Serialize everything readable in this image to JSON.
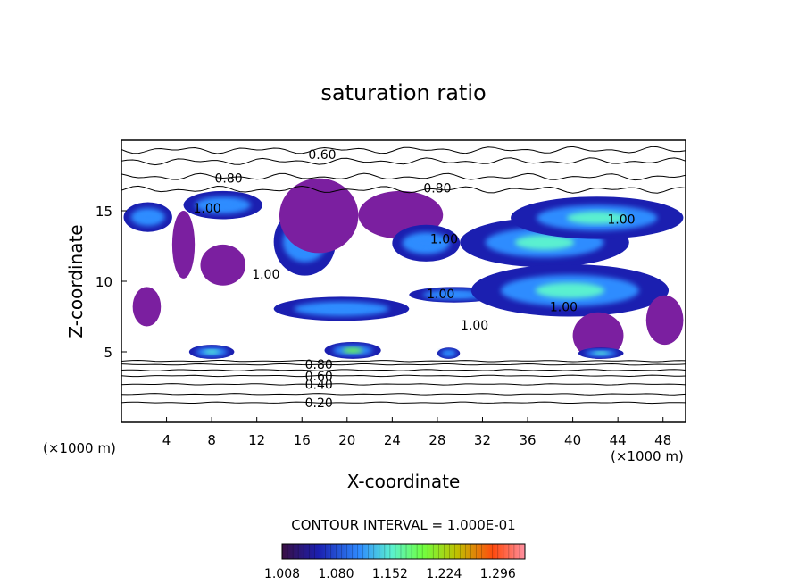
{
  "chart_data": {
    "type": "heatmap",
    "title": "saturation ratio",
    "xlabel": "X-coordinate",
    "ylabel": "Z-coordinate",
    "x_unit_left": "(×1000 m)",
    "x_unit_right": "(×1000 m)",
    "xlim": [
      0,
      50
    ],
    "ylim": [
      0,
      20
    ],
    "x_ticks": [
      4,
      8,
      12,
      16,
      20,
      24,
      28,
      32,
      36,
      40,
      44,
      48
    ],
    "y_ticks": [
      5,
      10,
      15
    ],
    "grid": false,
    "contour_interval_text": "CONTOUR INTERVAL = 1.000E-01",
    "contour_labels": [
      {
        "text": "0.20",
        "x": 17.5,
        "z": 1.4
      },
      {
        "text": "0.40",
        "x": 17.5,
        "z": 2.7
      },
      {
        "text": "0.60",
        "x": 17.5,
        "z": 3.3
      },
      {
        "text": "0.80",
        "x": 17.5,
        "z": 4.1
      },
      {
        "text": "0.60",
        "x": 17.8,
        "z": 19.0
      },
      {
        "text": "0.80",
        "x": 9.5,
        "z": 17.3
      },
      {
        "text": "0.80",
        "x": 28.0,
        "z": 16.6
      },
      {
        "text": "1.00",
        "x": 7.6,
        "z": 15.2
      },
      {
        "text": "1.00",
        "x": 12.8,
        "z": 10.5
      },
      {
        "text": "1.00",
        "x": 28.6,
        "z": 13.0
      },
      {
        "text": "1.00",
        "x": 28.3,
        "z": 9.1
      },
      {
        "text": "1.00",
        "x": 31.3,
        "z": 6.9
      },
      {
        "text": "1.00",
        "x": 39.2,
        "z": 8.2
      },
      {
        "text": "1.00",
        "x": 44.3,
        "z": 14.4
      }
    ],
    "colorbar": {
      "ticks": [
        1.008,
        1.08,
        1.152,
        1.224,
        1.296
      ],
      "tick_labels": [
        "1.008",
        "1.080",
        "1.152",
        "1.224",
        "1.296"
      ],
      "range": [
        1.008,
        1.332
      ],
      "colors": [
        "#3a0f44",
        "#1b1fb0",
        "#2f8cff",
        "#5af0d0",
        "#70ff40",
        "#c0c000",
        "#ff4a10",
        "#ff90a0"
      ]
    },
    "supersaturated_regions": [
      {
        "x0": 0.2,
        "x1": 4.5,
        "z0": 13.5,
        "z1": 15.6,
        "level": 1.1
      },
      {
        "x0": 4.5,
        "x1": 6.5,
        "z0": 10.2,
        "z1": 15.0,
        "level": 1.0
      },
      {
        "x0": 5.5,
        "x1": 12.5,
        "z0": 14.4,
        "z1": 16.4,
        "level": 1.12
      },
      {
        "x0": 7.0,
        "x1": 11.0,
        "z0": 9.7,
        "z1": 12.6,
        "level": 1.0
      },
      {
        "x0": 1.0,
        "x1": 3.5,
        "z0": 6.8,
        "z1": 9.6,
        "level": 1.0
      },
      {
        "x0": 13.5,
        "x1": 19.0,
        "z0": 10.4,
        "z1": 15.2,
        "level": 1.08
      },
      {
        "x0": 14.0,
        "x1": 21.0,
        "z0": 12.0,
        "z1": 17.3,
        "level": 1.0
      },
      {
        "x0": 21.0,
        "x1": 28.5,
        "z0": 13.0,
        "z1": 16.4,
        "level": 1.0
      },
      {
        "x0": 24.0,
        "x1": 30.0,
        "z0": 11.4,
        "z1": 14.0,
        "level": 1.1
      },
      {
        "x0": 13.5,
        "x1": 25.5,
        "z0": 7.2,
        "z1": 8.9,
        "level": 1.12
      },
      {
        "x0": 25.5,
        "x1": 33.5,
        "z0": 8.5,
        "z1": 9.6,
        "level": 1.08
      },
      {
        "x0": 30.0,
        "x1": 45.0,
        "z0": 11.0,
        "z1": 14.5,
        "level": 1.14
      },
      {
        "x0": 34.5,
        "x1": 49.8,
        "z0": 13.0,
        "z1": 16.0,
        "level": 1.16
      },
      {
        "x0": 31.0,
        "x1": 48.5,
        "z0": 7.5,
        "z1": 11.2,
        "level": 1.15
      },
      {
        "x0": 40.0,
        "x1": 44.5,
        "z0": 4.5,
        "z1": 7.8,
        "level": 1.0
      },
      {
        "x0": 6.0,
        "x1": 10.0,
        "z0": 4.5,
        "z1": 5.5,
        "level": 1.15
      },
      {
        "x0": 18.0,
        "x1": 23.0,
        "z0": 4.5,
        "z1": 5.7,
        "level": 1.18
      },
      {
        "x0": 28.0,
        "x1": 30.0,
        "z0": 4.5,
        "z1": 5.3,
        "level": 1.12
      },
      {
        "x0": 40.5,
        "x1": 44.5,
        "z0": 4.5,
        "z1": 5.3,
        "level": 1.14
      },
      {
        "x0": 46.5,
        "x1": 49.8,
        "z0": 5.5,
        "z1": 9.0,
        "level": 1.0
      }
    ]
  }
}
